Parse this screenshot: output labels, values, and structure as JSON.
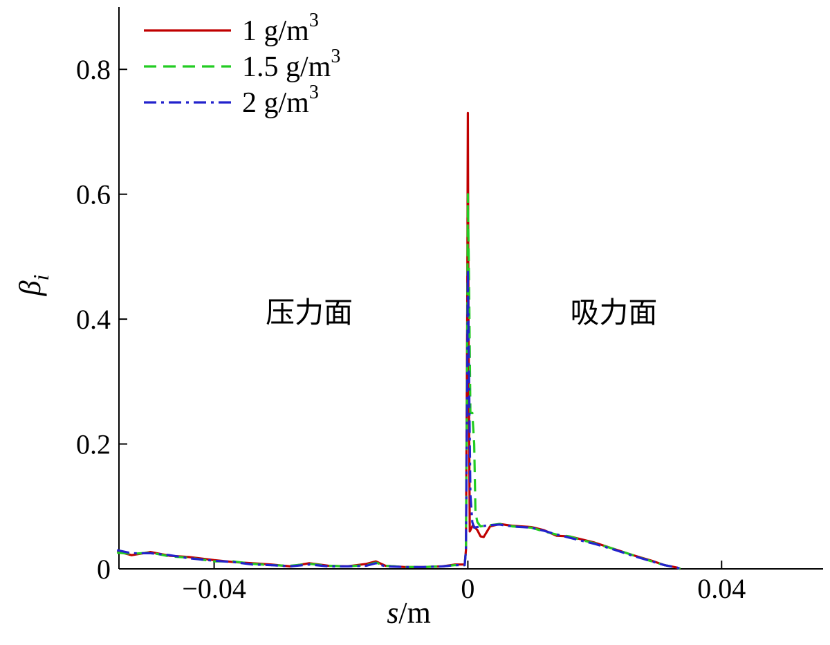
{
  "chart_data": {
    "type": "line",
    "xlabel": {
      "var": "s",
      "unit": "m"
    },
    "ylabel": {
      "var": "β",
      "sub": "i"
    },
    "xlim": [
      -0.055,
      0.056
    ],
    "ylim": [
      0,
      0.9
    ],
    "x_ticks": [
      {
        "value": -0.04,
        "label": "−0.04"
      },
      {
        "value": 0,
        "label": "0"
      },
      {
        "value": 0.04,
        "label": "0.04"
      }
    ],
    "y_ticks": [
      {
        "value": 0,
        "label": "0"
      },
      {
        "value": 0.2,
        "label": "0.2"
      },
      {
        "value": 0.4,
        "label": "0.4"
      },
      {
        "value": 0.6,
        "label": "0.6"
      },
      {
        "value": 0.8,
        "label": "0.8"
      }
    ],
    "annotations": [
      {
        "text": "压力面",
        "x": -0.025,
        "y": 0.41
      },
      {
        "text": "吸力面",
        "x": 0.023,
        "y": 0.41
      }
    ],
    "legend_position": "top-left",
    "series": [
      {
        "name_base": "1 g/m",
        "name_sup": "3",
        "color": "#c00000",
        "style": "solid",
        "points": [
          [
            -0.0553,
            0.028
          ],
          [
            -0.053,
            0.022
          ],
          [
            -0.05,
            0.027
          ],
          [
            -0.047,
            0.021
          ],
          [
            -0.044,
            0.019
          ],
          [
            -0.04,
            0.014
          ],
          [
            -0.037,
            0.011
          ],
          [
            -0.034,
            0.009
          ],
          [
            -0.031,
            0.007
          ],
          [
            -0.028,
            0.004
          ],
          [
            -0.025,
            0.009
          ],
          [
            -0.022,
            0.005
          ],
          [
            -0.019,
            0.004
          ],
          [
            -0.016,
            0.008
          ],
          [
            -0.0145,
            0.012
          ],
          [
            -0.013,
            0.005
          ],
          [
            -0.01,
            0.003
          ],
          [
            -0.007,
            0.003
          ],
          [
            -0.004,
            0.004
          ],
          [
            -0.002,
            0.007
          ],
          [
            -0.0005,
            0.007
          ],
          [
            -0.0003,
            0.03
          ],
          [
            -0.0001,
            0.4
          ],
          [
            0.0,
            0.73
          ],
          [
            0.0001,
            0.4
          ],
          [
            0.0003,
            0.06
          ],
          [
            0.0008,
            0.07
          ],
          [
            0.0015,
            0.062
          ],
          [
            0.002,
            0.052
          ],
          [
            0.0025,
            0.051
          ],
          [
            0.0035,
            0.068
          ],
          [
            0.005,
            0.072
          ],
          [
            0.007,
            0.069
          ],
          [
            0.01,
            0.067
          ],
          [
            0.012,
            0.062
          ],
          [
            0.014,
            0.053
          ],
          [
            0.016,
            0.052
          ],
          [
            0.018,
            0.047
          ],
          [
            0.02,
            0.042
          ],
          [
            0.023,
            0.032
          ],
          [
            0.026,
            0.022
          ],
          [
            0.029,
            0.013
          ],
          [
            0.031,
            0.006
          ],
          [
            0.033,
            0.002
          ],
          [
            0.0335,
            0.0
          ]
        ]
      },
      {
        "name_base": "1.5 g/m",
        "name_sup": "3",
        "color": "#22cc22",
        "style": "dashed",
        "points": [
          [
            -0.0553,
            0.026
          ],
          [
            -0.053,
            0.024
          ],
          [
            -0.05,
            0.026
          ],
          [
            -0.047,
            0.02
          ],
          [
            -0.044,
            0.018
          ],
          [
            -0.04,
            0.012
          ],
          [
            -0.037,
            0.012
          ],
          [
            -0.034,
            0.008
          ],
          [
            -0.031,
            0.006
          ],
          [
            -0.028,
            0.005
          ],
          [
            -0.025,
            0.008
          ],
          [
            -0.022,
            0.005
          ],
          [
            -0.019,
            0.004
          ],
          [
            -0.016,
            0.006
          ],
          [
            -0.0145,
            0.01
          ],
          [
            -0.013,
            0.005
          ],
          [
            -0.01,
            0.003
          ],
          [
            -0.007,
            0.003
          ],
          [
            -0.004,
            0.004
          ],
          [
            -0.002,
            0.006
          ],
          [
            -0.0005,
            0.006
          ],
          [
            -0.0003,
            0.03
          ],
          [
            -0.0001,
            0.35
          ],
          [
            0.0,
            0.6
          ],
          [
            0.0002,
            0.45
          ],
          [
            0.0004,
            0.25
          ],
          [
            0.0007,
            0.25
          ],
          [
            0.001,
            0.2
          ],
          [
            0.0012,
            0.09
          ],
          [
            0.0015,
            0.075
          ],
          [
            0.002,
            0.068
          ],
          [
            0.0035,
            0.07
          ],
          [
            0.005,
            0.072
          ],
          [
            0.007,
            0.068
          ],
          [
            0.01,
            0.066
          ],
          [
            0.012,
            0.06
          ],
          [
            0.014,
            0.055
          ],
          [
            0.016,
            0.052
          ],
          [
            0.018,
            0.046
          ],
          [
            0.02,
            0.041
          ],
          [
            0.023,
            0.032
          ],
          [
            0.026,
            0.022
          ],
          [
            0.029,
            0.012
          ],
          [
            0.031,
            0.006
          ],
          [
            0.033,
            0.002
          ],
          [
            0.0335,
            0.0
          ]
        ]
      },
      {
        "name_base": "2 g/m",
        "name_sup": "3",
        "color": "#2222cc",
        "style": "dashdot",
        "points": [
          [
            -0.0553,
            0.03
          ],
          [
            -0.053,
            0.025
          ],
          [
            -0.05,
            0.025
          ],
          [
            -0.047,
            0.022
          ],
          [
            -0.044,
            0.017
          ],
          [
            -0.04,
            0.013
          ],
          [
            -0.037,
            0.011
          ],
          [
            -0.034,
            0.007
          ],
          [
            -0.031,
            0.006
          ],
          [
            -0.028,
            0.004
          ],
          [
            -0.025,
            0.007
          ],
          [
            -0.022,
            0.004
          ],
          [
            -0.019,
            0.004
          ],
          [
            -0.016,
            0.005
          ],
          [
            -0.0145,
            0.009
          ],
          [
            -0.013,
            0.004
          ],
          [
            -0.01,
            0.003
          ],
          [
            -0.007,
            0.003
          ],
          [
            -0.004,
            0.004
          ],
          [
            -0.002,
            0.006
          ],
          [
            -0.0005,
            0.006
          ],
          [
            -0.0003,
            0.03
          ],
          [
            -0.0001,
            0.3
          ],
          [
            0.0,
            0.48
          ],
          [
            0.0002,
            0.3
          ],
          [
            0.0004,
            0.12
          ],
          [
            0.0007,
            0.075
          ],
          [
            0.001,
            0.066
          ],
          [
            0.002,
            0.068
          ],
          [
            0.0035,
            0.07
          ],
          [
            0.005,
            0.071
          ],
          [
            0.007,
            0.068
          ],
          [
            0.01,
            0.066
          ],
          [
            0.012,
            0.061
          ],
          [
            0.014,
            0.055
          ],
          [
            0.016,
            0.05
          ],
          [
            0.018,
            0.045
          ],
          [
            0.02,
            0.04
          ],
          [
            0.023,
            0.031
          ],
          [
            0.026,
            0.021
          ],
          [
            0.029,
            0.012
          ],
          [
            0.031,
            0.006
          ],
          [
            0.033,
            0.002
          ],
          [
            0.0335,
            0.0
          ]
        ]
      }
    ]
  }
}
